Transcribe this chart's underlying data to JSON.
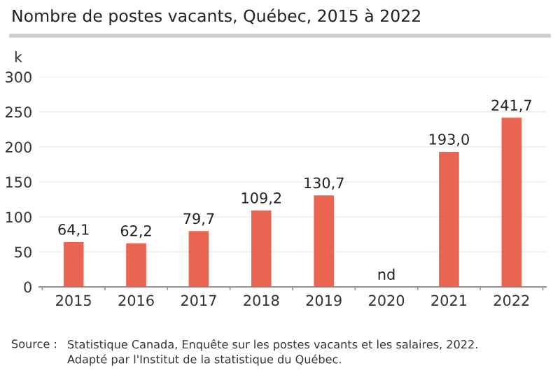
{
  "chart_data": {
    "type": "bar",
    "title": "Nombre de postes vacants, Québec, 2015 à 2022",
    "ylabel": "k",
    "categories": [
      "2015",
      "2016",
      "2017",
      "2018",
      "2019",
      "2020",
      "2021",
      "2022"
    ],
    "values": [
      64.1,
      62.2,
      79.7,
      109.2,
      130.7,
      null,
      193.0,
      241.7
    ],
    "value_labels": [
      "64,1",
      "62,2",
      "79,7",
      "109,2",
      "130,7",
      "nd",
      "193,0",
      "241,7"
    ],
    "color": "#e96552",
    "ylim": [
      0,
      300
    ],
    "yticks": [
      0,
      50,
      100,
      150,
      200,
      250,
      300
    ],
    "grid": "y",
    "legend": false,
    "annotations": [
      "Source :",
      "Statistique Canada, Enquête sur les postes vacants et les salaires, 2022.\nAdapté par l'Institut de la statistique du Québec."
    ]
  }
}
